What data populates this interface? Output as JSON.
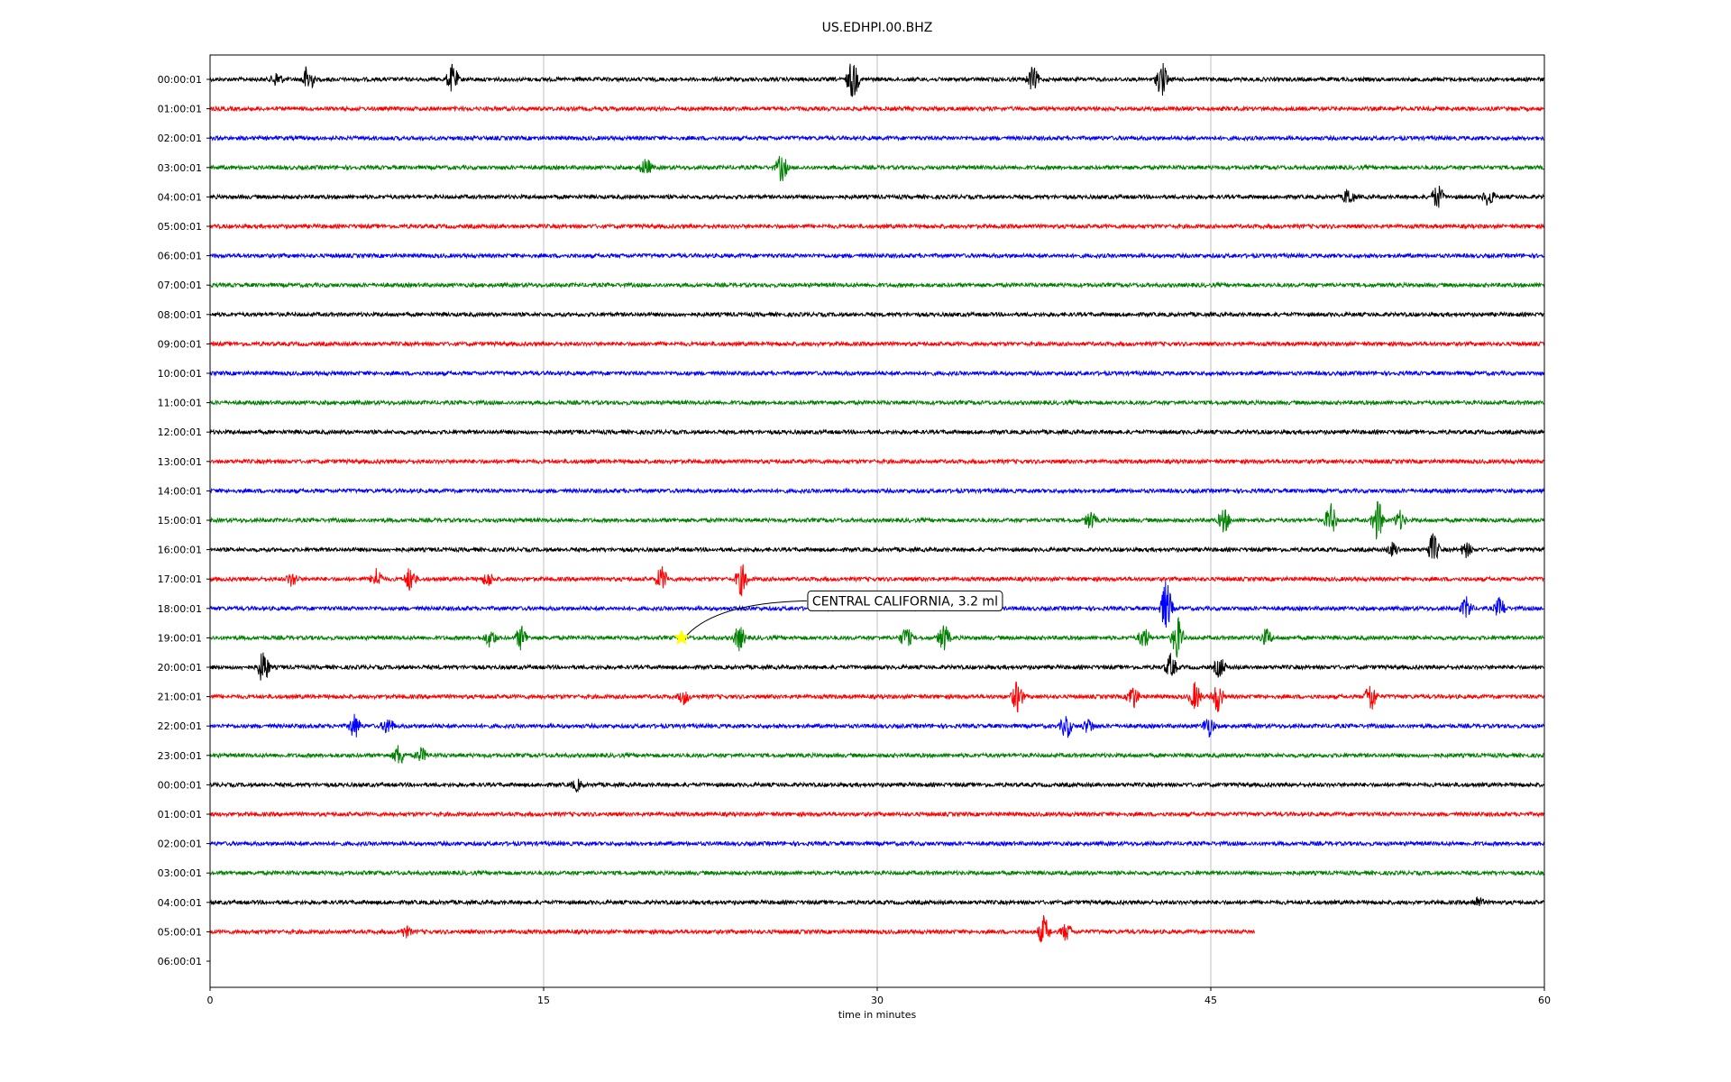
{
  "chart_data": {
    "type": "line",
    "title": "US.EDHPI.00.BHZ",
    "xlabel": "time in minutes",
    "ylabel": "",
    "xlim": [
      0,
      60
    ],
    "x_ticks": [
      "0",
      "15",
      "30",
      "45",
      "60"
    ],
    "x_tick_values": [
      0,
      15,
      30,
      45,
      60
    ],
    "grid_x": true,
    "row_labels": [
      "00:00:01",
      "01:00:01",
      "02:00:01",
      "03:00:01",
      "04:00:01",
      "05:00:01",
      "06:00:01",
      "07:00:01",
      "08:00:01",
      "09:00:01",
      "10:00:01",
      "11:00:01",
      "12:00:01",
      "13:00:01",
      "14:00:01",
      "15:00:01",
      "16:00:01",
      "17:00:01",
      "18:00:01",
      "19:00:01",
      "20:00:01",
      "21:00:01",
      "22:00:01",
      "23:00:01",
      "00:00:01",
      "01:00:01",
      "02:00:01",
      "03:00:01",
      "04:00:01",
      "05:00:01",
      "06:00:01"
    ],
    "trace_colors": [
      "#000000",
      "#ff0000",
      "#0000ff",
      "#008000"
    ],
    "last_trace_end_minute": 47,
    "events": [
      {
        "row": 0,
        "minute": 3,
        "amp": 0.4
      },
      {
        "row": 0,
        "minute": 4.4,
        "amp": 0.9
      },
      {
        "row": 0,
        "minute": 10.9,
        "amp": 0.8
      },
      {
        "row": 0,
        "minute": 28.9,
        "amp": 1.2
      },
      {
        "row": 0,
        "minute": 37,
        "amp": 0.7
      },
      {
        "row": 0,
        "minute": 42.8,
        "amp": 1.0
      },
      {
        "row": 3,
        "minute": 19.6,
        "amp": 0.5
      },
      {
        "row": 3,
        "minute": 25.7,
        "amp": 0.8
      },
      {
        "row": 4,
        "minute": 51.2,
        "amp": 0.5
      },
      {
        "row": 4,
        "minute": 55.2,
        "amp": 0.7
      },
      {
        "row": 4,
        "minute": 57.5,
        "amp": 0.5
      },
      {
        "row": 15,
        "minute": 39.6,
        "amp": 0.5
      },
      {
        "row": 15,
        "minute": 45.6,
        "amp": 0.7
      },
      {
        "row": 15,
        "minute": 50.4,
        "amp": 0.9
      },
      {
        "row": 15,
        "minute": 52.5,
        "amp": 1.2
      },
      {
        "row": 15,
        "minute": 53.5,
        "amp": 0.5
      },
      {
        "row": 16,
        "minute": 53.2,
        "amp": 0.4
      },
      {
        "row": 16,
        "minute": 55,
        "amp": 0.9
      },
      {
        "row": 16,
        "minute": 56.5,
        "amp": 0.4
      },
      {
        "row": 17,
        "minute": 3.7,
        "amp": 0.4
      },
      {
        "row": 17,
        "minute": 7.5,
        "amp": 0.6
      },
      {
        "row": 17,
        "minute": 9,
        "amp": 0.7
      },
      {
        "row": 17,
        "minute": 12.5,
        "amp": 0.4
      },
      {
        "row": 17,
        "minute": 20.3,
        "amp": 0.7
      },
      {
        "row": 17,
        "minute": 23.9,
        "amp": 0.9
      },
      {
        "row": 18,
        "minute": 43,
        "amp": 1.6
      },
      {
        "row": 18,
        "minute": 56.5,
        "amp": 0.6
      },
      {
        "row": 18,
        "minute": 58,
        "amp": 0.6
      },
      {
        "row": 19,
        "minute": 12.6,
        "amp": 0.5
      },
      {
        "row": 19,
        "minute": 14,
        "amp": 0.7
      },
      {
        "row": 19,
        "minute": 23.8,
        "amp": 0.7
      },
      {
        "row": 19,
        "minute": 31.3,
        "amp": 0.6
      },
      {
        "row": 19,
        "minute": 33,
        "amp": 0.8
      },
      {
        "row": 19,
        "minute": 42,
        "amp": 0.6
      },
      {
        "row": 19,
        "minute": 43.5,
        "amp": 1.2
      },
      {
        "row": 19,
        "minute": 47.5,
        "amp": 0.5
      },
      {
        "row": 20,
        "minute": 2.4,
        "amp": 1.0
      },
      {
        "row": 20,
        "minute": 43.2,
        "amp": 0.7
      },
      {
        "row": 20,
        "minute": 45.4,
        "amp": 0.6
      },
      {
        "row": 21,
        "minute": 21.3,
        "amp": 0.4
      },
      {
        "row": 21,
        "minute": 36.3,
        "amp": 0.9
      },
      {
        "row": 21,
        "minute": 41.5,
        "amp": 0.7
      },
      {
        "row": 21,
        "minute": 44.3,
        "amp": 0.8
      },
      {
        "row": 21,
        "minute": 45.3,
        "amp": 0.9
      },
      {
        "row": 21,
        "minute": 52.2,
        "amp": 0.9
      },
      {
        "row": 22,
        "minute": 6.5,
        "amp": 0.7
      },
      {
        "row": 22,
        "minute": 8,
        "amp": 0.5
      },
      {
        "row": 22,
        "minute": 38.5,
        "amp": 0.7
      },
      {
        "row": 22,
        "minute": 39.5,
        "amp": 0.4
      },
      {
        "row": 22,
        "minute": 44.9,
        "amp": 0.6
      },
      {
        "row": 23,
        "minute": 8.5,
        "amp": 0.6
      },
      {
        "row": 23,
        "minute": 9.5,
        "amp": 0.4
      },
      {
        "row": 24,
        "minute": 16.5,
        "amp": 0.3
      },
      {
        "row": 28,
        "minute": 57,
        "amp": 0.3
      },
      {
        "row": 29,
        "minute": 8.8,
        "amp": 0.3
      },
      {
        "row": 29,
        "minute": 37.5,
        "amp": 0.9
      },
      {
        "row": 29,
        "minute": 38.5,
        "amp": 0.5
      }
    ],
    "annotations": [
      {
        "text": "CENTRAL CALIFORNIA, 3.2 ml",
        "row": 19,
        "minute": 21.2,
        "marker": "star",
        "marker_color": "#ffff00"
      }
    ]
  }
}
